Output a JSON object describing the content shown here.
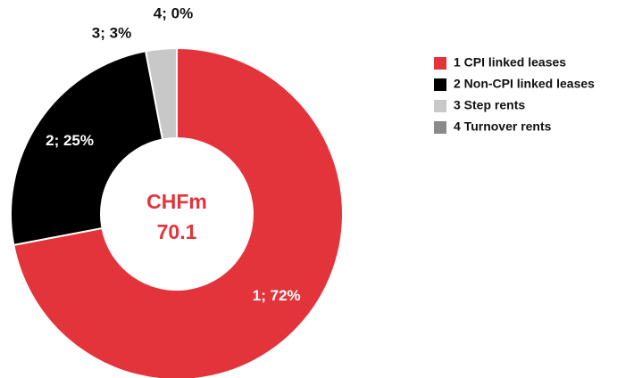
{
  "chart_data": {
    "type": "donut",
    "categories": [
      "1 CPI linked leases",
      "2 Non-CPI linked leases",
      "3 Step rents",
      "4 Turnover rents"
    ],
    "values": [
      72,
      25,
      3,
      0
    ],
    "value_labels": [
      "1; 72%",
      "2; 25%",
      "3; 3%",
      "4; 0%"
    ],
    "colors": [
      "#e3343b",
      "#000000",
      "#c8c8c8",
      "#8a8a8a"
    ],
    "center_label": [
      "CHFm",
      "70.1"
    ],
    "legend": "right"
  }
}
